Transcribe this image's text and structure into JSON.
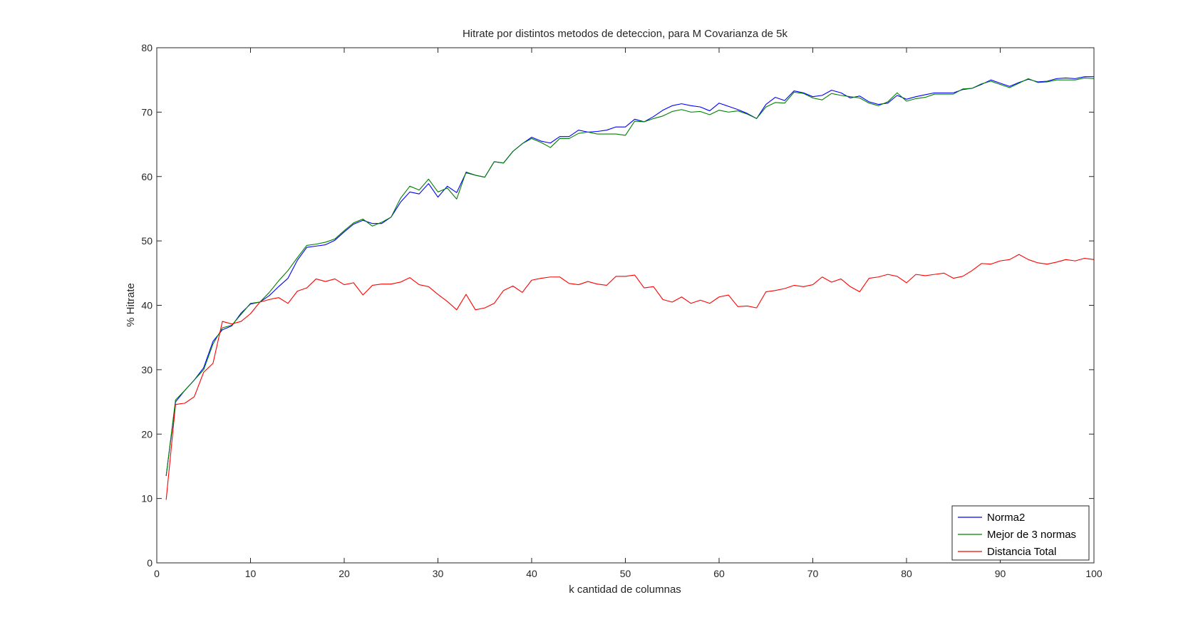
{
  "chart_data": {
    "type": "line",
    "title": "Hitrate por distintos metodos de deteccion, para M Covarianza de 5k",
    "xlabel": "k cantidad de columnas",
    "ylabel": "% Hitrate",
    "xlim": [
      0,
      100
    ],
    "ylim": [
      0,
      80
    ],
    "xticks": [
      0,
      10,
      20,
      30,
      40,
      50,
      60,
      70,
      80,
      90,
      100
    ],
    "yticks": [
      0,
      10,
      20,
      30,
      40,
      50,
      60,
      70,
      80
    ],
    "grid": false,
    "legend_position": "bottom-right",
    "x": [
      1,
      2,
      3,
      4,
      5,
      6,
      7,
      8,
      9,
      10,
      11,
      12,
      13,
      14,
      15,
      16,
      17,
      18,
      19,
      20,
      21,
      22,
      23,
      24,
      25,
      26,
      27,
      28,
      29,
      30,
      31,
      32,
      33,
      34,
      35,
      36,
      37,
      38,
      39,
      40,
      41,
      42,
      43,
      44,
      45,
      46,
      47,
      48,
      49,
      50,
      51,
      52,
      53,
      54,
      55,
      56,
      57,
      58,
      59,
      60,
      61,
      62,
      63,
      64,
      65,
      66,
      67,
      68,
      69,
      70,
      71,
      72,
      73,
      74,
      75,
      76,
      77,
      78,
      79,
      80,
      81,
      82,
      83,
      84,
      85,
      86,
      87,
      88,
      89,
      90,
      91,
      92,
      93,
      94,
      95,
      96,
      97,
      98,
      99,
      100
    ],
    "series": [
      {
        "name": "Norma2",
        "color": "#0000ff",
        "values": [
          13.5,
          25.0,
          26.8,
          28.4,
          30.3,
          34.4,
          36.2,
          36.8,
          38.8,
          40.2,
          40.5,
          41.5,
          42.9,
          44.2,
          47.0,
          49.0,
          49.2,
          49.4,
          50.1,
          51.4,
          52.6,
          53.2,
          52.7,
          52.7,
          53.7,
          56.0,
          57.6,
          57.3,
          58.9,
          56.8,
          58.5,
          57.5,
          60.6,
          60.2,
          59.9,
          62.3,
          62.1,
          63.9,
          65.1,
          66.1,
          65.5,
          65.2,
          66.2,
          66.2,
          67.2,
          66.9,
          67.0,
          67.2,
          67.7,
          67.7,
          68.9,
          68.5,
          69.3,
          70.3,
          71.0,
          71.3,
          71.0,
          70.8,
          70.2,
          71.4,
          70.9,
          70.4,
          69.8,
          69.0,
          71.2,
          72.3,
          71.8,
          73.3,
          73.0,
          72.4,
          72.6,
          73.4,
          73.0,
          72.2,
          72.5,
          71.6,
          71.2,
          71.4,
          72.6,
          72.0,
          72.4,
          72.7,
          73.0,
          73.0,
          73.0,
          73.5,
          73.7,
          74.3,
          75.0,
          74.5,
          74.0,
          74.6,
          75.1,
          74.7,
          74.8,
          75.2,
          75.3,
          75.2,
          75.5,
          75.5
        ]
      },
      {
        "name": "Mejor de 3 normas",
        "color": "#008000",
        "values": [
          13.5,
          25.3,
          26.8,
          28.4,
          30.0,
          34.0,
          36.5,
          36.9,
          38.6,
          40.3,
          40.5,
          42.0,
          43.8,
          45.4,
          47.4,
          49.3,
          49.5,
          49.8,
          50.3,
          51.6,
          52.8,
          53.4,
          52.3,
          52.9,
          53.7,
          56.6,
          58.5,
          57.9,
          59.6,
          57.6,
          58.2,
          56.5,
          60.7,
          60.2,
          59.9,
          62.3,
          62.1,
          63.9,
          65.1,
          65.9,
          65.3,
          64.5,
          65.9,
          65.9,
          66.7,
          66.9,
          66.6,
          66.6,
          66.6,
          66.4,
          68.6,
          68.5,
          69.0,
          69.4,
          70.1,
          70.4,
          70.0,
          70.1,
          69.6,
          70.3,
          70.0,
          70.2,
          69.7,
          69.0,
          70.8,
          71.5,
          71.4,
          73.1,
          72.9,
          72.2,
          71.9,
          72.9,
          72.6,
          72.4,
          72.2,
          71.4,
          71.0,
          71.6,
          73.0,
          71.7,
          72.1,
          72.3,
          72.8,
          72.8,
          72.8,
          73.6,
          73.7,
          74.4,
          74.8,
          74.3,
          73.8,
          74.5,
          75.2,
          74.6,
          74.7,
          75.0,
          75.0,
          75.0,
          75.3,
          75.2
        ]
      },
      {
        "name": "Distancia Total",
        "color": "#ff0000",
        "values": [
          9.8,
          24.6,
          24.8,
          25.8,
          29.6,
          31.0,
          37.5,
          37.1,
          37.5,
          38.7,
          40.5,
          40.9,
          41.2,
          40.3,
          42.2,
          42.7,
          44.1,
          43.7,
          44.1,
          43.2,
          43.5,
          41.6,
          43.1,
          43.3,
          43.3,
          43.6,
          44.3,
          43.2,
          42.9,
          41.7,
          40.6,
          39.3,
          41.7,
          39.3,
          39.6,
          40.3,
          42.3,
          43.0,
          42.0,
          43.9,
          44.2,
          44.4,
          44.4,
          43.4,
          43.2,
          43.7,
          43.3,
          43.1,
          44.5,
          44.5,
          44.7,
          42.7,
          42.9,
          40.9,
          40.5,
          41.3,
          40.3,
          40.8,
          40.3,
          41.3,
          41.6,
          39.8,
          39.9,
          39.6,
          42.1,
          42.3,
          42.6,
          43.1,
          42.9,
          43.2,
          44.4,
          43.6,
          44.1,
          42.9,
          42.1,
          44.2,
          44.4,
          44.8,
          44.5,
          43.5,
          44.8,
          44.6,
          44.8,
          45.0,
          44.2,
          44.5,
          45.4,
          46.5,
          46.4,
          46.9,
          47.1,
          47.9,
          47.1,
          46.6,
          46.4,
          46.7,
          47.1,
          46.9,
          47.3,
          47.1
        ]
      }
    ]
  }
}
